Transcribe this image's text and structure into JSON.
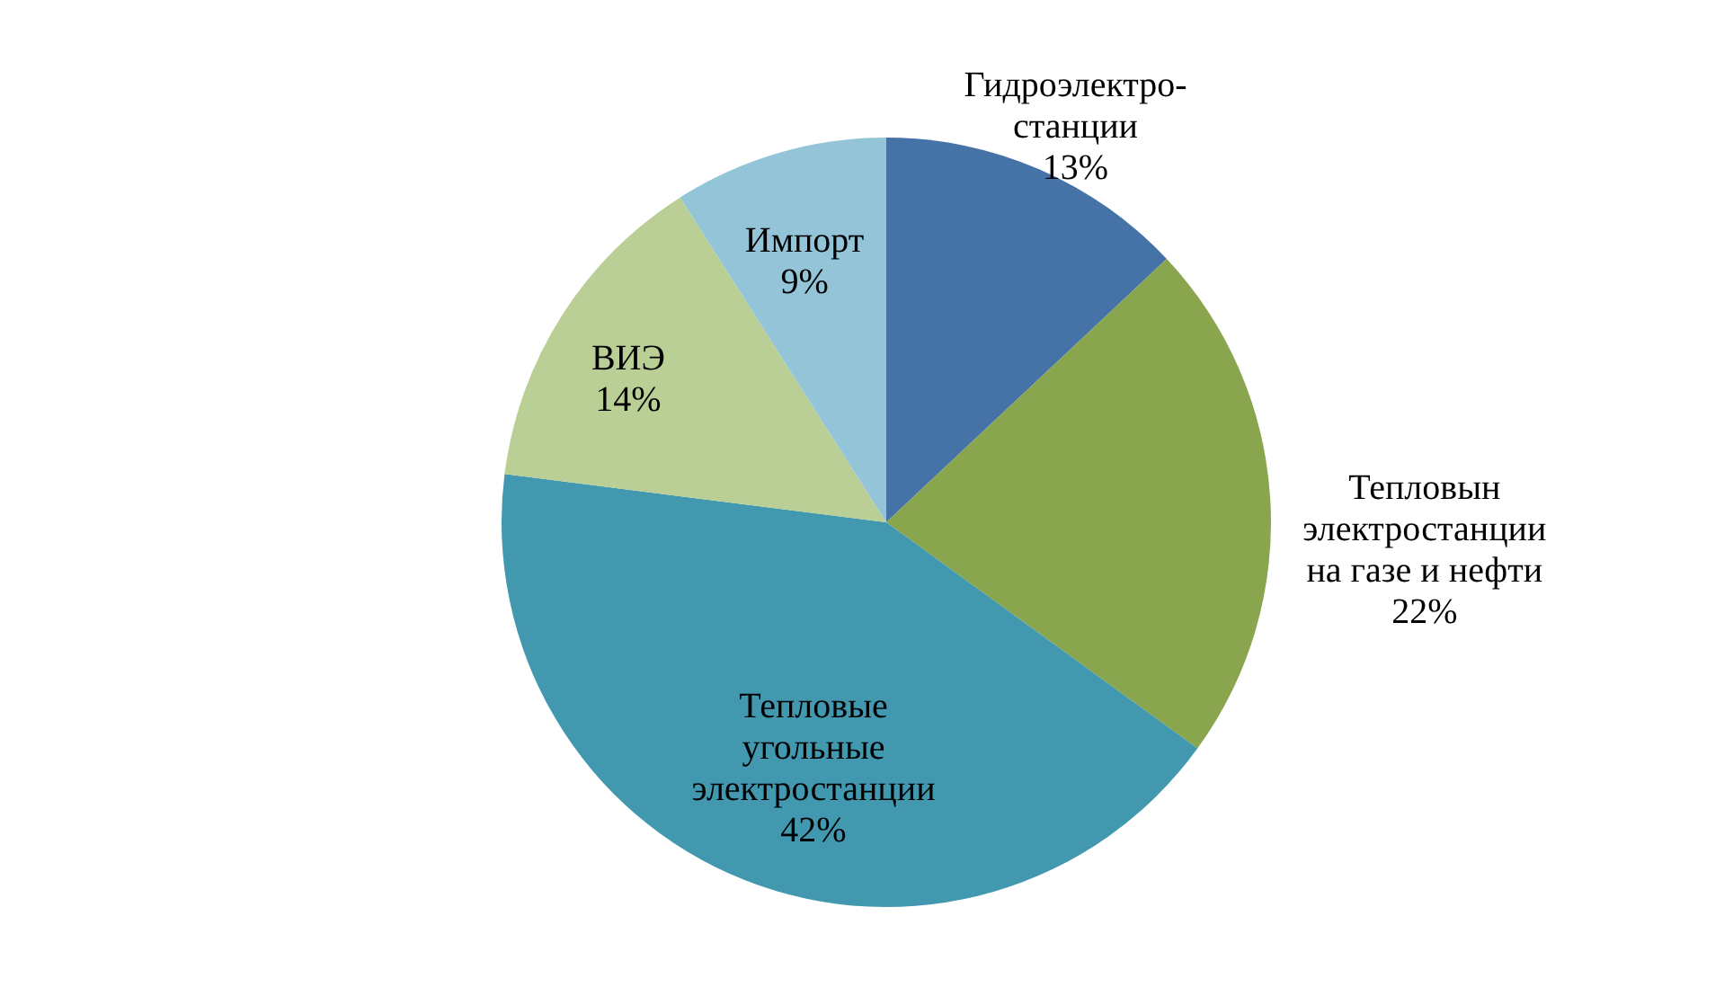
{
  "chart_data": {
    "type": "pie",
    "categories": [
      "Гидроэлектро-\nстанции",
      "Тепловын\nэлектростанции\nна газе и нефти",
      "Тепловые\nугольные\nэлектростанции",
      "ВИЭ",
      "Импорт"
    ],
    "values": [
      13,
      22,
      42,
      14,
      9
    ],
    "value_labels": [
      "13%",
      "22%",
      "42%",
      "14%",
      "9%"
    ],
    "colors": [
      "#4572a7",
      "#89a54e",
      "#4198af",
      "#b9cf96",
      "#93c4d7"
    ],
    "legend": false
  }
}
